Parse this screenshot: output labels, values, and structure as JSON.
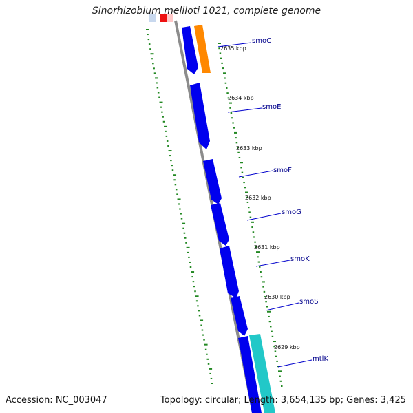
{
  "title": "Sinorhizobium meliloti 1021, complete genome",
  "footer": {
    "accession": "Accession: NC_003047",
    "summary": "Topology: circular; Length: 3,654,135 bp; Genes: 3,425"
  },
  "colors": {
    "gene_forward": "#0000ee",
    "gene_orange": "#ff8800",
    "gene_cyan": "#22c8c8",
    "gene_red": "#ee1111",
    "backbone": "#8c8c8c",
    "ticks": "#228822",
    "label_text": "#00008b",
    "label_line": "#0000cc",
    "ruler_text": "#111111"
  },
  "ruler_labels": [
    "2635 kbp",
    "2634 kbp",
    "2633 kbp",
    "2632 kbp",
    "2631 kbp",
    "2630 kbp",
    "2629 kbp"
  ],
  "genes": [
    {
      "name": "smoC",
      "color": "gene_orange"
    },
    {
      "name": "smoE",
      "color": "gene_forward"
    },
    {
      "name": "smoF",
      "color": "gene_forward"
    },
    {
      "name": "smoG",
      "color": "gene_forward"
    },
    {
      "name": "smoK",
      "color": "gene_forward"
    },
    {
      "name": "smoS",
      "color": "gene_forward"
    },
    {
      "name": "mtlK",
      "color": "gene_cyan"
    }
  ]
}
